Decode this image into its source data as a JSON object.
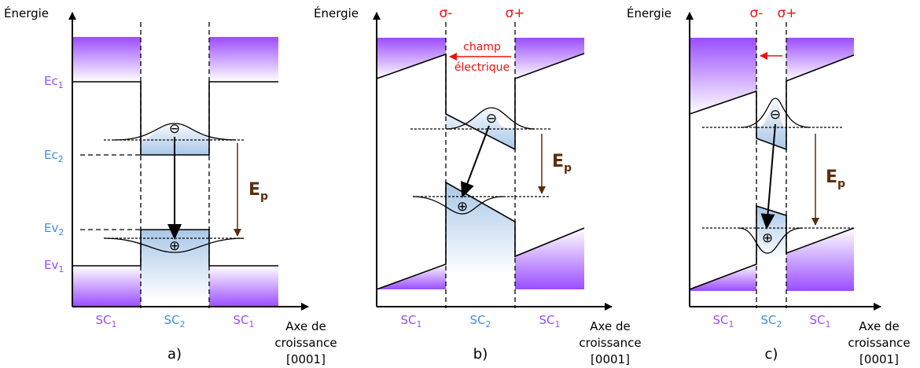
{
  "axis_labels": {
    "energy": "Énergie",
    "growth_line1": "Axe de",
    "growth_line2": "croissance",
    "growth_line3": "[0001]"
  },
  "levels": {
    "ec1_main": "Ec",
    "ec1_sub": "1",
    "ec2_main": "Ec",
    "ec2_sub": "2",
    "ev2_main": "Ev",
    "ev2_sub": "2",
    "ev1_main": "Ev",
    "ev1_sub": "1"
  },
  "regions": {
    "sc1_main": "SC",
    "sc1_sub": "1",
    "sc2_main": "SC",
    "sc2_sub": "2"
  },
  "ep": {
    "main": "E",
    "sub": "p"
  },
  "polarization": {
    "sigma_minus": "σ-",
    "sigma_plus": "σ+"
  },
  "field_label": {
    "line1": "champ",
    "line2": "électrique"
  },
  "carriers": {
    "electron": "⊖",
    "hole": "⊕"
  },
  "panel_labels": {
    "a": "a)",
    "b": "b)",
    "c": "c)"
  },
  "colors": {
    "sc1": "#9b4dff",
    "sc2_text": "#3f8fe0",
    "sc2_fill": "#a9c7e8",
    "ep": "#5c2e0e",
    "field": "#ee1111"
  }
}
